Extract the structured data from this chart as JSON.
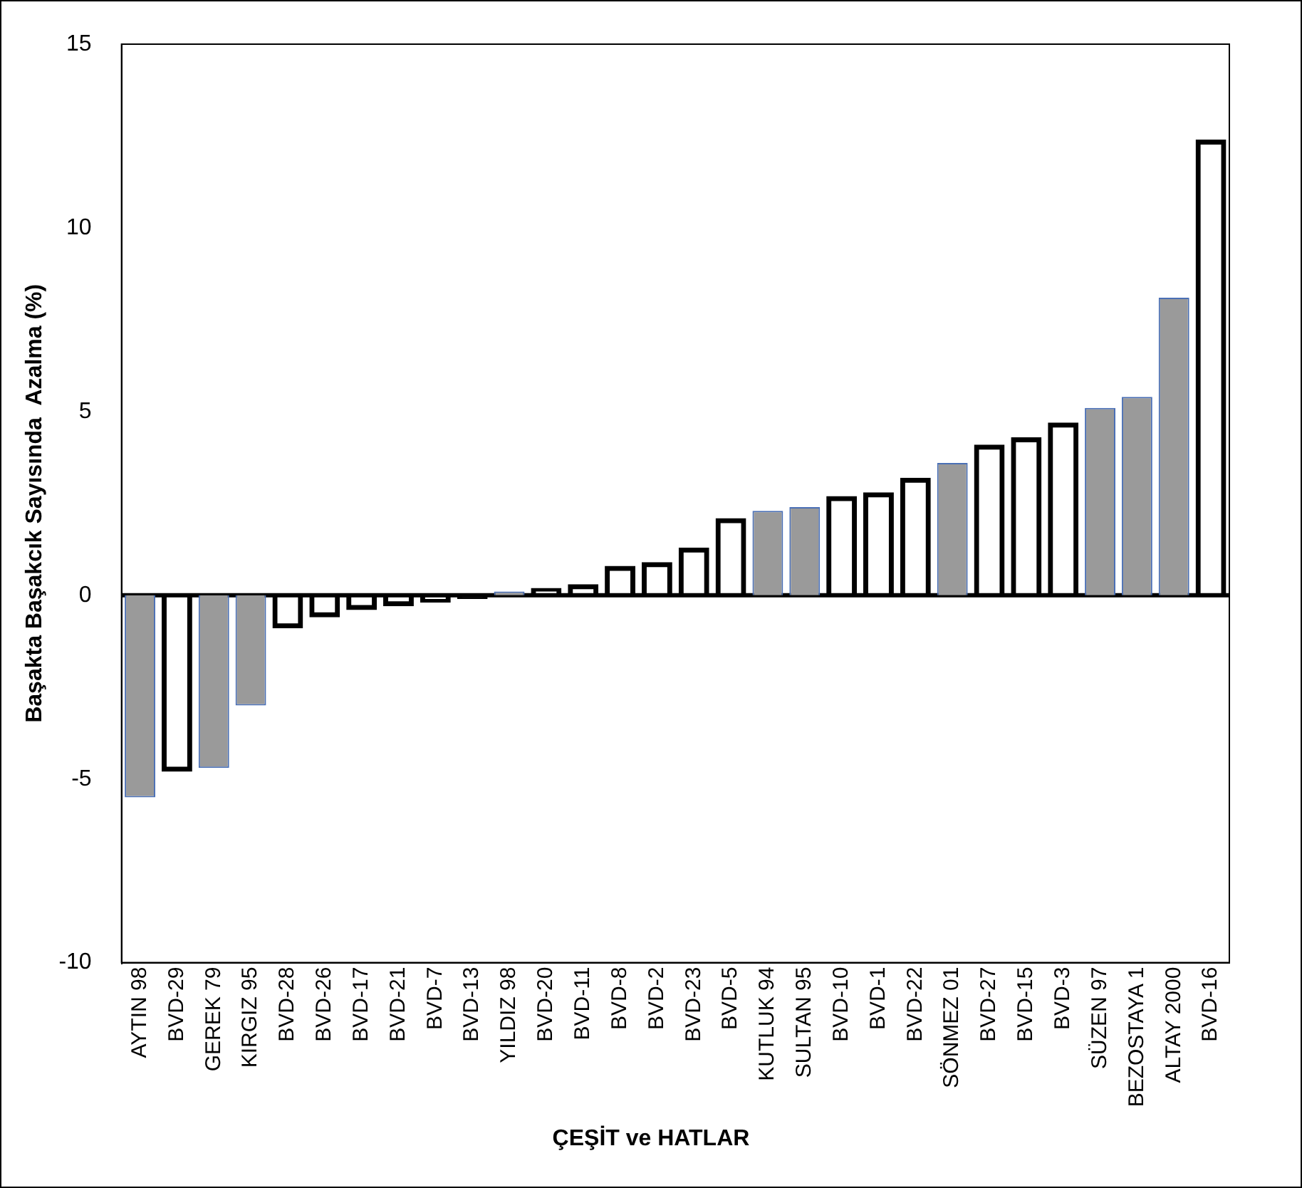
{
  "chart_data": {
    "type": "bar",
    "xlabel": "ÇEŞİT ve HATLAR",
    "ylabel": "Başakta Başakcık Sayısında  Azalma (%)",
    "categories": [
      "AYTIN 98",
      "BVD-29",
      "GEREK 79",
      "KIRGIZ 95",
      "BVD-28",
      "BVD-26",
      "BVD-17",
      "BVD-21",
      "BVD-7",
      "BVD-13",
      "YILDIZ 98",
      "BVD-20",
      "BVD-11",
      "BVD-8",
      "BVD-2",
      "BVD-23",
      "BVD-5",
      "KUTLUK 94",
      "SULTAN 95",
      "BVD-10",
      "BVD-1",
      "BVD-22",
      "SÖNMEZ 01",
      "BVD-27",
      "BVD-15",
      "BVD-3",
      "SÜZEN 97",
      "BEZOSTAYA 1",
      "ALTAY 2000",
      "BVD-16"
    ],
    "values": [
      -5.5,
      -4.8,
      -4.7,
      -3.0,
      -0.9,
      -0.6,
      -0.4,
      -0.3,
      -0.2,
      -0.1,
      0.1,
      0.2,
      0.3,
      0.8,
      0.9,
      1.3,
      2.1,
      2.3,
      2.4,
      2.7,
      2.8,
      3.2,
      3.6,
      4.1,
      4.3,
      4.7,
      5.1,
      5.4,
      8.1,
      12.4
    ],
    "colors": [
      "#9a9a9a",
      "#000000",
      "#9a9a9a",
      "#9a9a9a",
      "#000000",
      "#000000",
      "#000000",
      "#000000",
      "#000000",
      "#000000",
      "#9a9a9a",
      "#000000",
      "#000000",
      "#000000",
      "#000000",
      "#000000",
      "#000000",
      "#9a9a9a",
      "#9a9a9a",
      "#000000",
      "#000000",
      "#000000",
      "#9a9a9a",
      "#000000",
      "#000000",
      "#000000",
      "#9a9a9a",
      "#9a9a9a",
      "#9a9a9a",
      "#000000"
    ],
    "ylim": [
      -10,
      15
    ],
    "yticks": [
      -10,
      -5,
      0,
      5,
      10,
      15
    ],
    "grid": false,
    "legend": false,
    "ref_lines": [
      {
        "axis": "y",
        "value": 0,
        "color": "#000000"
      }
    ]
  }
}
